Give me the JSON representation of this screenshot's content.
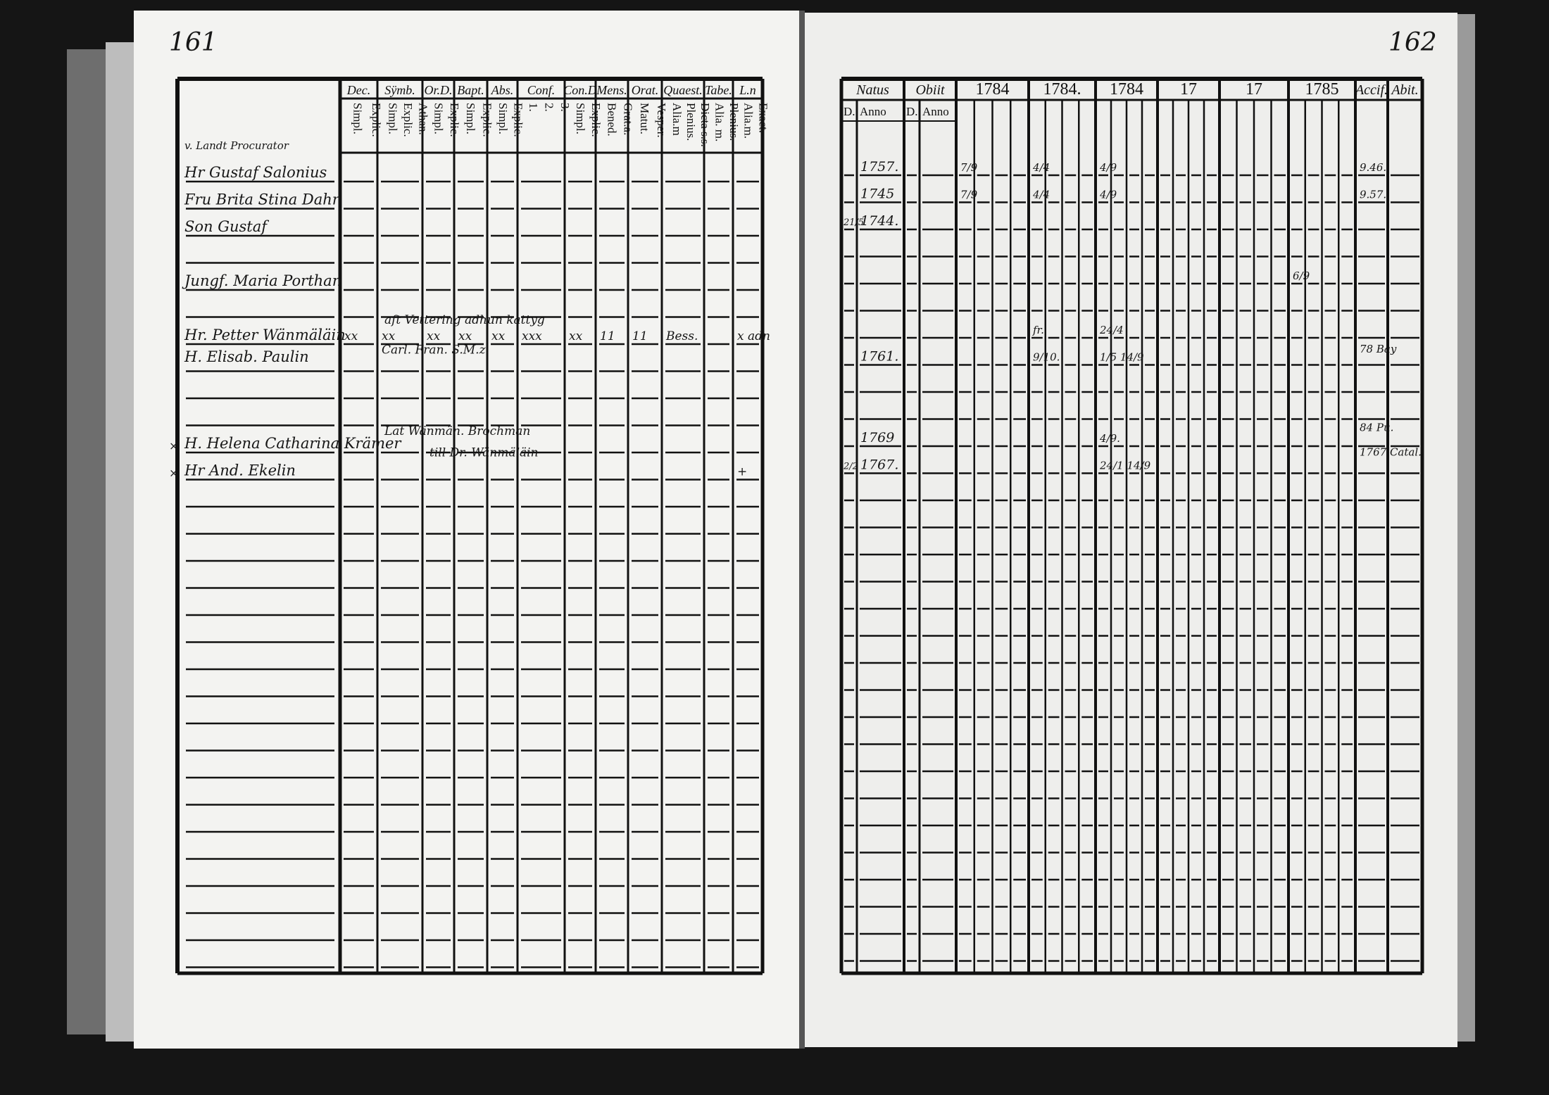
{
  "colors": {
    "background": "#151515",
    "paper": "#f3f3f1",
    "ink": "#111111"
  },
  "left_page": {
    "page_number": "161",
    "name_header_note": "v. Landt Procurator",
    "columns": [
      {
        "key": "dec",
        "header": "Dec.",
        "sub": [
          "Explic.",
          "Simpl."
        ]
      },
      {
        "key": "symb",
        "header": "Sÿmb.",
        "sub": [
          "Athan.",
          "Explic.",
          "Simpl."
        ]
      },
      {
        "key": "ord",
        "header": "Or.D.",
        "sub": [
          "Explic.",
          "Simpl."
        ]
      },
      {
        "key": "bapt",
        "header": "Bapt.",
        "sub": [
          "Explic.",
          "Simpl."
        ]
      },
      {
        "key": "abs",
        "header": "Abs.",
        "sub": [
          "Explic.",
          "Simpl."
        ]
      },
      {
        "key": "conf",
        "header": "Conf.",
        "sub": [
          "3.",
          "2.",
          "1."
        ]
      },
      {
        "key": "cond",
        "header": "Con.D",
        "sub": [
          "Explic.",
          "Simpl."
        ]
      },
      {
        "key": "mens",
        "header": "Mens.",
        "sub": [
          "Grat.a.",
          "Bened."
        ]
      },
      {
        "key": "orat",
        "header": "Orat.",
        "sub": [
          "Vesper.",
          "Matut."
        ]
      },
      {
        "key": "quaest",
        "header": "Quaest.",
        "sub": [
          "Dicta s.s.",
          "Plenius.",
          "Alia.m"
        ]
      },
      {
        "key": "tabe",
        "header": "Tabe.",
        "sub": [
          "Plenius.",
          "Alia. m."
        ]
      },
      {
        "key": "ln",
        "header": "L.n",
        "sub": [
          "Exact.",
          "Alia.m."
        ]
      }
    ],
    "entries": [
      {
        "row": 0,
        "name": "Hr Gustaf Salonius"
      },
      {
        "row": 1,
        "name": "Fru Brita Stina Dahr"
      },
      {
        "row": 2,
        "name": "Son Gustaf"
      },
      {
        "row": 4,
        "name": "Jungf. Maria Porthan"
      },
      {
        "row": 6,
        "name": "Hr. Petter Wänmäläin"
      },
      {
        "row": 6.8,
        "name": "H. Elisab. Paulin"
      },
      {
        "row": 10,
        "name": "H. Helena Catharina Krämer",
        "mark": "×"
      },
      {
        "row": 11,
        "name": "Hr And. Ekelin",
        "mark": "×"
      }
    ],
    "marks": [
      {
        "row": 6,
        "col": "dec",
        "text": "xx"
      },
      {
        "row": 6,
        "col": "symb",
        "text": "xx"
      },
      {
        "row": 6,
        "col": "ord",
        "text": "xx"
      },
      {
        "row": 6,
        "col": "bapt",
        "text": "xx"
      },
      {
        "row": 6,
        "col": "abs",
        "text": "xx"
      },
      {
        "row": 6,
        "col": "conf",
        "text": "xxx"
      },
      {
        "row": 6,
        "col": "cond",
        "text": "xx"
      },
      {
        "row": 6,
        "col": "mens",
        "text": "11"
      },
      {
        "row": 6,
        "col": "orat",
        "text": "11"
      },
      {
        "row": 6,
        "col": "quaest",
        "text": "Bess."
      },
      {
        "row": 6,
        "col": "ln",
        "text": "x adn"
      },
      {
        "row": 6.5,
        "col": "symb",
        "text": "Carl. Fran. S.M.z."
      },
      {
        "row": 11,
        "col": "ln",
        "text": "+"
      }
    ],
    "notes": [
      {
        "row": 5.4,
        "col": "symb",
        "text": "aft Vettering adhun kattyg"
      },
      {
        "row": 9.5,
        "col": "symb",
        "text": "Lat Wänmän. Brochman"
      },
      {
        "row": 10.3,
        "col": "ord",
        "text": "till Dr. Wänmäläin"
      }
    ]
  },
  "right_page": {
    "page_number": "162",
    "columns": [
      {
        "key": "natus",
        "header": "Natus",
        "sub": [
          "D.",
          "Anno"
        ]
      },
      {
        "key": "obiit",
        "header": "Obiit",
        "sub": [
          "D.",
          "Anno"
        ]
      },
      {
        "key": "y1",
        "header": "1784"
      },
      {
        "key": "y2",
        "header": "1784."
      },
      {
        "key": "y3",
        "header": "1784"
      },
      {
        "key": "y4",
        "header": "17"
      },
      {
        "key": "y5",
        "header": "17"
      },
      {
        "key": "y6",
        "header": "1785"
      },
      {
        "key": "accif",
        "header": "Accif."
      },
      {
        "key": "abit",
        "header": "Abit."
      }
    ],
    "entries": [
      {
        "row": 0,
        "birth_year": "1757."
      },
      {
        "row": 1,
        "birth_year": "1745"
      },
      {
        "row": 2,
        "birth_day": "21/5",
        "birth_year": "1744."
      },
      {
        "row": 7,
        "birth_year": "1761."
      },
      {
        "row": 10,
        "birth_year": "1769"
      },
      {
        "row": 11,
        "birth_day": "2/2",
        "birth_year": "1767."
      }
    ],
    "marks": [
      {
        "row": 0,
        "col": "y1",
        "text": "7/9"
      },
      {
        "row": 1,
        "col": "y1",
        "text": "7/9"
      },
      {
        "row": 0,
        "col": "y2",
        "text": "4/4"
      },
      {
        "row": 1,
        "col": "y2",
        "text": "4/4"
      },
      {
        "row": 0,
        "col": "y3",
        "text": "4/9"
      },
      {
        "row": 1,
        "col": "y3",
        "text": "4/9"
      },
      {
        "row": 6,
        "col": "y2",
        "text": "fr."
      },
      {
        "row": 6,
        "col": "y3",
        "text": "24/4"
      },
      {
        "row": 7,
        "col": "y2",
        "text": "9/10."
      },
      {
        "row": 7,
        "col": "y3",
        "text": "1/5 14/9"
      },
      {
        "row": 10,
        "col": "y3",
        "text": "4/9."
      },
      {
        "row": 11,
        "col": "y3",
        "text": "24/1 14/9"
      },
      {
        "row": 4,
        "col": "y6",
        "text": "6/9"
      },
      {
        "row": 0,
        "col": "accif",
        "text": "9.46."
      },
      {
        "row": 1,
        "col": "accif",
        "text": "9.57."
      },
      {
        "row": 6.7,
        "col": "accif",
        "text": "78 Bay"
      },
      {
        "row": 9.6,
        "col": "accif",
        "text": "84 Pu."
      },
      {
        "row": 10.5,
        "col": "accif",
        "text": "1767 Catal."
      }
    ]
  }
}
